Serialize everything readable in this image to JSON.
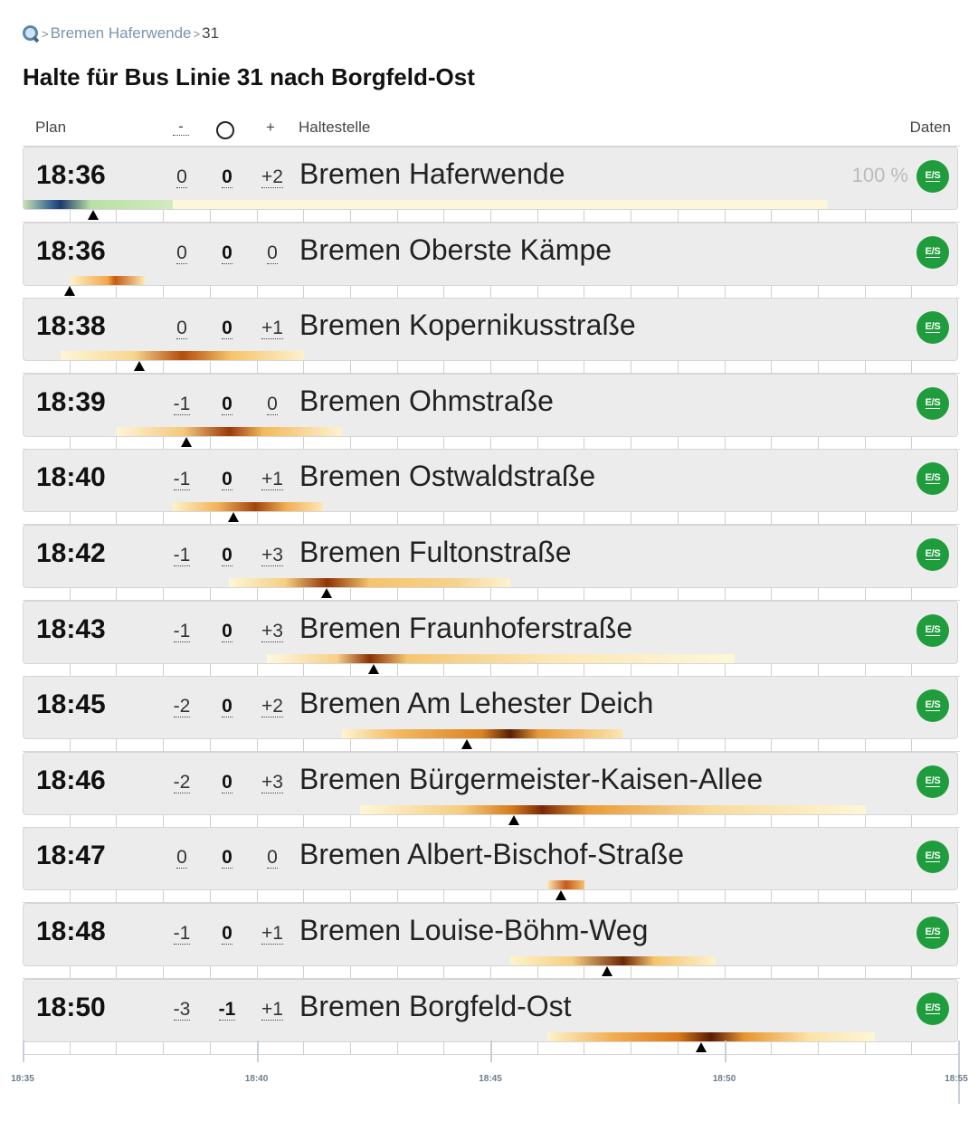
{
  "breadcrumb": {
    "icon": "search-icon",
    "stop_link": "Bremen Haferwende",
    "separator": ">",
    "current": "31"
  },
  "title": "Halte für Bus Linie 31 nach Borgfeld-Ost",
  "columns": {
    "plan": "Plan",
    "minus": "-",
    "plus": "+",
    "stop": "Haltestelle",
    "data": "Daten"
  },
  "es_label": "E/S",
  "colors": {
    "accent": "#1f9d3d",
    "link": "#7a96ae",
    "marker": "#000000"
  },
  "timeline": {
    "start": "18:35",
    "end": "18:55",
    "labels": [
      "18:35",
      "18:40",
      "18:45",
      "18:50",
      "18:55"
    ]
  },
  "stops": [
    {
      "plan": "18:36",
      "min": "0",
      "zero": "0",
      "max": "+2",
      "name": "Bremen Haferwende",
      "pct": "100 %",
      "marker_min": 36.5
    },
    {
      "plan": "18:36",
      "min": "0",
      "zero": "0",
      "max": "0",
      "name": "Bremen Oberste Kämpe",
      "pct": "",
      "marker_min": 36.0
    },
    {
      "plan": "18:38",
      "min": "0",
      "zero": "0",
      "max": "+1",
      "name": "Bremen Kopernikusstraße",
      "pct": "",
      "marker_min": 37.5
    },
    {
      "plan": "18:39",
      "min": "-1",
      "zero": "0",
      "max": "0",
      "name": "Bremen Ohmstraße",
      "pct": "",
      "marker_min": 38.5
    },
    {
      "plan": "18:40",
      "min": "-1",
      "zero": "0",
      "max": "+1",
      "name": "Bremen Ostwaldstraße",
      "pct": "",
      "marker_min": 39.5
    },
    {
      "plan": "18:42",
      "min": "-1",
      "zero": "0",
      "max": "+3",
      "name": "Bremen Fultonstraße",
      "pct": "",
      "marker_min": 41.5
    },
    {
      "plan": "18:43",
      "min": "-1",
      "zero": "0",
      "max": "+3",
      "name": "Bremen Fraunhoferstraße",
      "pct": "",
      "marker_min": 42.5
    },
    {
      "plan": "18:45",
      "min": "-2",
      "zero": "0",
      "max": "+2",
      "name": "Bremen Am Lehester Deich",
      "pct": "",
      "marker_min": 44.5
    },
    {
      "plan": "18:46",
      "min": "-2",
      "zero": "0",
      "max": "+3",
      "name": "Bremen Bürgermeister-Kaisen-Allee",
      "pct": "",
      "marker_min": 45.5
    },
    {
      "plan": "18:47",
      "min": "0",
      "zero": "0",
      "max": "0",
      "name": "Bremen Albert-Bischof-Straße",
      "pct": "",
      "marker_min": 46.5
    },
    {
      "plan": "18:48",
      "min": "-1",
      "zero": "0",
      "max": "+1",
      "name": "Bremen Louise-Böhm-Weg",
      "pct": "",
      "marker_min": 47.5
    },
    {
      "plan": "18:50",
      "min": "-3",
      "zero": "-1",
      "max": "+1",
      "name": "Bremen Borgfeld-Ost",
      "pct": "",
      "marker_min": 49.5
    }
  ]
}
